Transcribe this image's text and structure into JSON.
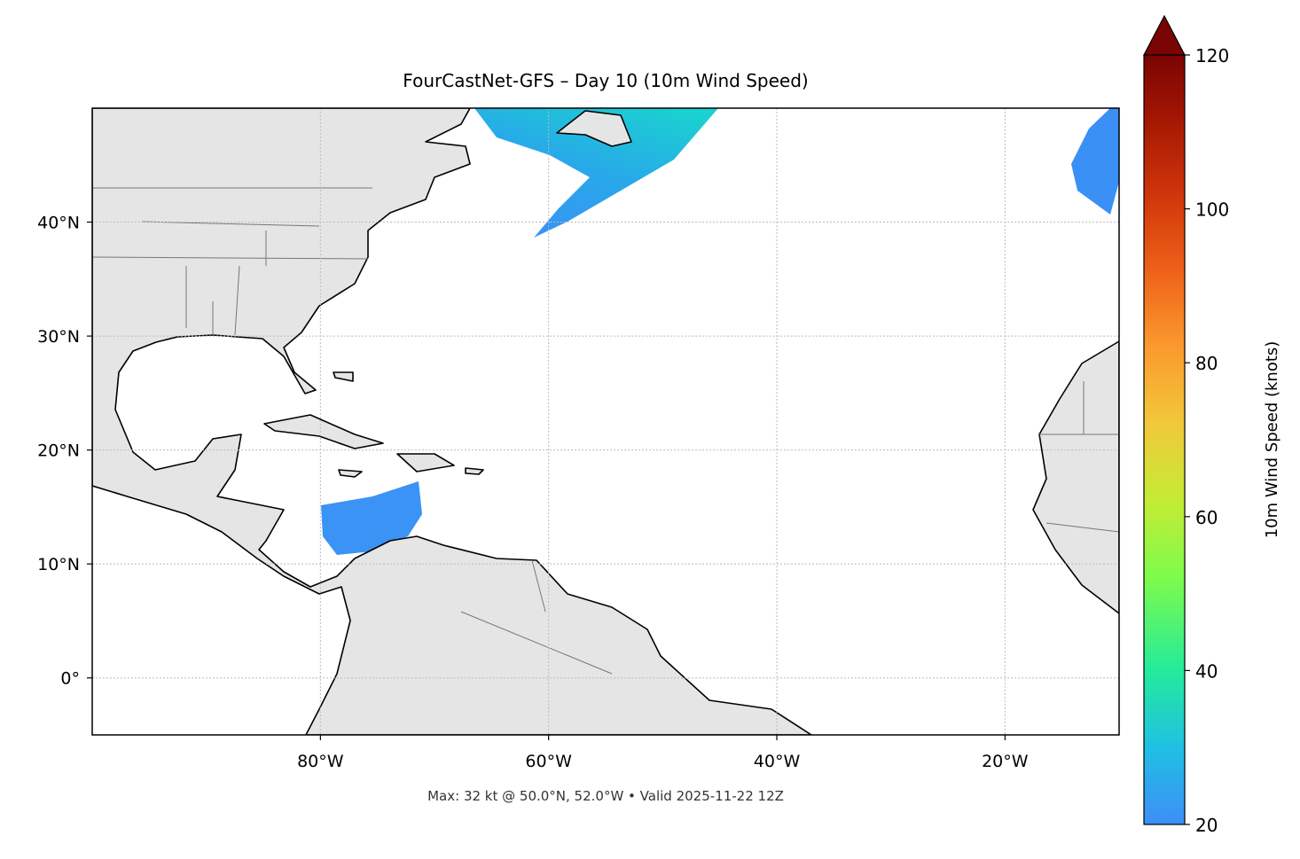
{
  "chart_data": {
    "type": "map",
    "title": "FourCastNet-GFS – Day 10 (10m Wind Speed)",
    "xlim": [
      -100,
      -10
    ],
    "xticks": [
      {
        "value": -80,
        "label": "80°W"
      },
      {
        "value": -60,
        "label": "60°W"
      },
      {
        "value": -40,
        "label": "40°W"
      },
      {
        "value": -20,
        "label": "20°W"
      }
    ],
    "ylim": [
      -5,
      50
    ],
    "yticks": [
      {
        "value": 0,
        "label": "0°"
      },
      {
        "value": 10,
        "label": "10°N"
      },
      {
        "value": 20,
        "label": "20°N"
      },
      {
        "value": 30,
        "label": "30°N"
      },
      {
        "value": 40,
        "label": "40°N"
      }
    ],
    "grid": true,
    "annotation": "Max: 32 kt @ 50.0°N, 52.0°W • Valid 2025-11-22 12Z",
    "colorbar": {
      "label": "10m Wind Speed (knots)",
      "lim": [
        20,
        120
      ],
      "ticks": [
        20,
        40,
        60,
        80,
        100,
        120
      ],
      "extend": "max"
    }
  }
}
